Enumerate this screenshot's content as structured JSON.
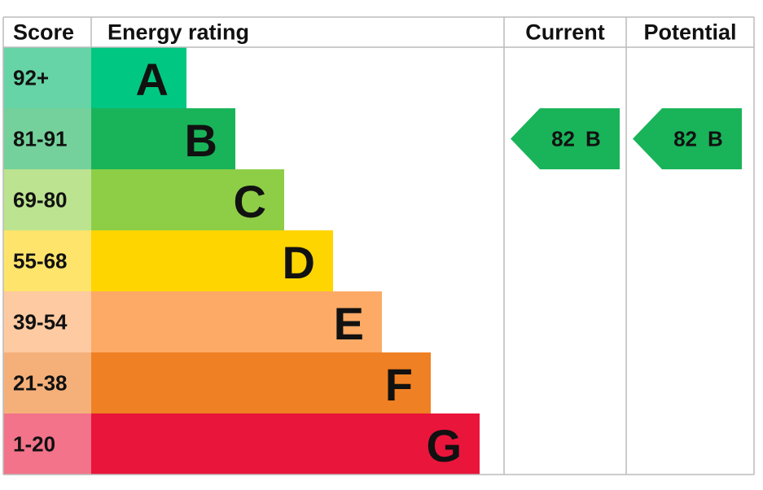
{
  "header": {
    "score": "Score",
    "rating": "Energy rating",
    "current": "Current",
    "potential": "Potential"
  },
  "bands": [
    {
      "score": "92+",
      "letter": "A",
      "color": "#00c781",
      "light": "#66d4a6"
    },
    {
      "score": "81-91",
      "letter": "B",
      "color": "#19b459",
      "light": "#75d19b"
    },
    {
      "score": "69-80",
      "letter": "C",
      "color": "#8dce46",
      "light": "#bce390"
    },
    {
      "score": "55-68",
      "letter": "D",
      "color": "#ffd500",
      "light": "#ffe46b"
    },
    {
      "score": "39-54",
      "letter": "E",
      "color": "#fcaa65",
      "light": "#fdcaa2"
    },
    {
      "score": "21-38",
      "letter": "F",
      "color": "#ef8023",
      "light": "#f5b07a"
    },
    {
      "score": "1-20",
      "letter": "G",
      "color": "#e9153b",
      "light": "#f2738a"
    }
  ],
  "current": {
    "value": 82,
    "letter": "B"
  },
  "potential": {
    "value": 82,
    "letter": "B"
  }
}
